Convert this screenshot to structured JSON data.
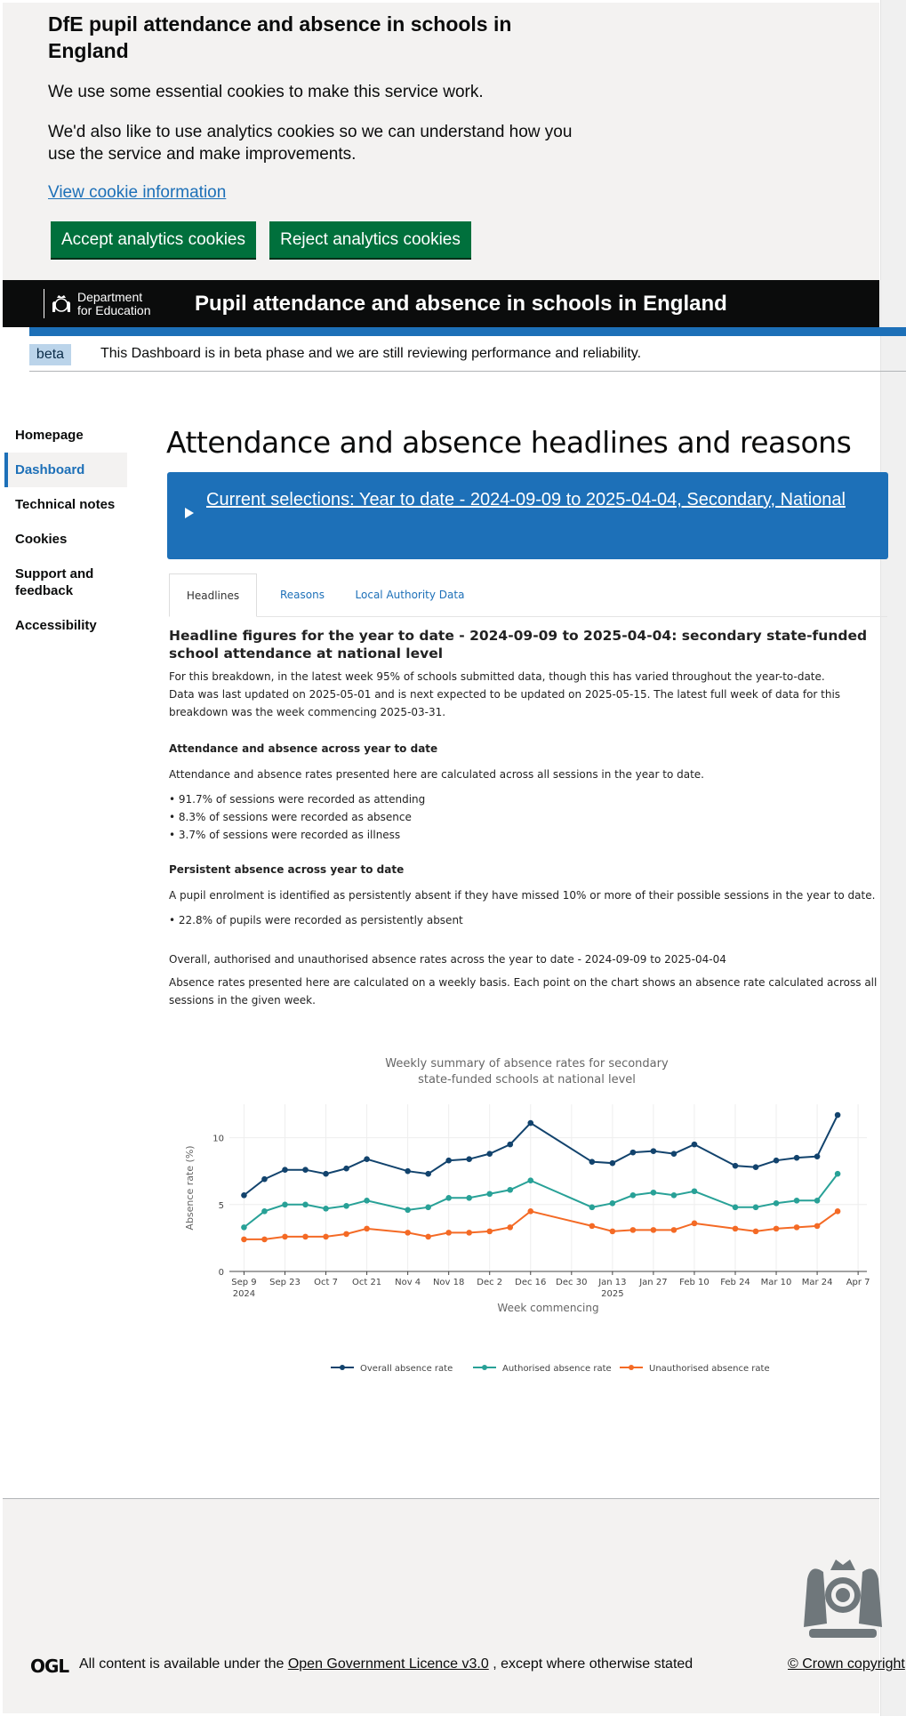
{
  "cookie_banner": {
    "title": "DfE pupil attendance and absence in schools in England",
    "essential_text": "We use some essential cookies to make this service work.",
    "analytics_text": "We'd also like to use analytics cookies so we can understand how you use the service and make improvements.",
    "view_link": "View cookie information",
    "accept_label": "Accept analytics cookies",
    "reject_label": "Reject analytics cookies"
  },
  "header": {
    "logo_line1": "Department",
    "logo_line2": "for Education",
    "title": "Pupil attendance and absence in schools in England"
  },
  "beta": {
    "tag": "beta",
    "text": "This Dashboard is in beta phase and we are still reviewing performance and reliability."
  },
  "sidebar": {
    "items": [
      {
        "label": "Homepage"
      },
      {
        "label": "Dashboard"
      },
      {
        "label": "Technical notes"
      },
      {
        "label": "Cookies"
      },
      {
        "label": "Support and feedback"
      },
      {
        "label": "Accessibility"
      }
    ],
    "active_index": 1
  },
  "main": {
    "title": "Attendance and absence headlines and reasons",
    "selections": "Current selections: Year to date - 2024-09-09 to 2025-04-04, Secondary, National",
    "tabs": [
      "Headlines",
      "Reasons",
      "Local Authority Data"
    ],
    "headline_title": "Headline figures for the year to date - 2024-09-09 to 2025-04-04: secondary state-funded school attendance at national level",
    "breakdown_text1": "For this breakdown, in the latest week 95% of schools submitted data, though this has varied throughout the year-to-date.",
    "breakdown_text2": "Data was last updated on 2025-05-01 and is next expected to be updated on 2025-05-15. The latest full week of data for this breakdown was the week commencing 2025-03-31.",
    "attendance_heading": "Attendance and absence across year to date",
    "attendance_text": "Attendance and absence rates presented here are calculated across all sessions in the year to date.",
    "attendance_bullets": [
      "• 91.7% of sessions were recorded as attending",
      "• 8.3% of sessions were recorded as absence",
      "• 3.7% of sessions were recorded as illness"
    ],
    "persistent_heading": "Persistent absence across year to date",
    "persistent_text": "A pupil enrolment is identified as persistently absent if they have missed 10% or more of their possible sessions in the year to date.",
    "persistent_bullet": "• 22.8% of pupils were recorded as persistently absent",
    "chart_heading": "Overall, authorised and unauthorised absence rates across the year to date - 2024-09-09 to 2025-04-04",
    "chart_text": "Absence rates presented here are calculated on a weekly basis. Each point on the chart shows an absence rate calculated across all sessions in the given week."
  },
  "chart_data": {
    "type": "line",
    "title_line1": "Weekly summary of absence rates for secondary",
    "title_line2": "state-funded schools at national level",
    "xlabel": "Week commencing",
    "ylabel": "Absence rate (%)",
    "ylim": [
      0,
      12.5
    ],
    "yticks": [
      0,
      5,
      10
    ],
    "xlim": [
      "2024-09-04",
      "2025-04-10"
    ],
    "xticks": [
      {
        "date": "2024-09-09",
        "label": "Sep 9",
        "sub": "2024"
      },
      {
        "date": "2024-09-23",
        "label": "Sep 23",
        "sub": ""
      },
      {
        "date": "2024-10-07",
        "label": "Oct 7",
        "sub": ""
      },
      {
        "date": "2024-10-21",
        "label": "Oct 21",
        "sub": ""
      },
      {
        "date": "2024-11-04",
        "label": "Nov 4",
        "sub": ""
      },
      {
        "date": "2024-11-18",
        "label": "Nov 18",
        "sub": ""
      },
      {
        "date": "2024-12-02",
        "label": "Dec 2",
        "sub": ""
      },
      {
        "date": "2024-12-16",
        "label": "Dec 16",
        "sub": ""
      },
      {
        "date": "2024-12-30",
        "label": "Dec 30",
        "sub": ""
      },
      {
        "date": "2025-01-13",
        "label": "Jan 13",
        "sub": "2025"
      },
      {
        "date": "2025-01-27",
        "label": "Jan 27",
        "sub": ""
      },
      {
        "date": "2025-02-10",
        "label": "Feb 10",
        "sub": ""
      },
      {
        "date": "2025-02-24",
        "label": "Feb 24",
        "sub": ""
      },
      {
        "date": "2025-03-10",
        "label": "Mar 10",
        "sub": ""
      },
      {
        "date": "2025-03-24",
        "label": "Mar 24",
        "sub": ""
      },
      {
        "date": "2025-04-07",
        "label": "Apr 7",
        "sub": ""
      }
    ],
    "x": [
      "2024-09-09",
      "2024-09-16",
      "2024-09-23",
      "2024-09-30",
      "2024-10-07",
      "2024-10-14",
      "2024-10-21",
      "2024-11-04",
      "2024-11-11",
      "2024-11-18",
      "2024-11-25",
      "2024-12-02",
      "2024-12-09",
      "2024-12-16",
      "2025-01-06",
      "2025-01-13",
      "2025-01-20",
      "2025-01-27",
      "2025-02-03",
      "2025-02-10",
      "2025-02-24",
      "2025-03-03",
      "2025-03-10",
      "2025-03-17",
      "2025-03-24",
      "2025-03-31"
    ],
    "series": [
      {
        "name": "Overall absence rate",
        "color": "#12436d",
        "values": [
          5.7,
          6.9,
          7.6,
          7.6,
          7.3,
          7.7,
          8.4,
          7.5,
          7.3,
          8.3,
          8.4,
          8.8,
          9.5,
          11.1,
          8.2,
          8.1,
          8.9,
          9.0,
          8.8,
          9.5,
          7.9,
          7.8,
          8.3,
          8.5,
          8.6,
          11.7
        ]
      },
      {
        "name": "Authorised absence rate",
        "color": "#28a197",
        "values": [
          3.3,
          4.5,
          5.0,
          5.0,
          4.7,
          4.9,
          5.3,
          4.6,
          4.8,
          5.5,
          5.5,
          5.8,
          6.1,
          6.8,
          4.8,
          5.1,
          5.7,
          5.9,
          5.7,
          6.0,
          4.8,
          4.8,
          5.1,
          5.3,
          5.3,
          7.3
        ]
      },
      {
        "name": "Unauthorised absence rate",
        "color": "#f46a25",
        "values": [
          2.4,
          2.4,
          2.6,
          2.6,
          2.6,
          2.8,
          3.2,
          2.9,
          2.6,
          2.9,
          2.9,
          3.0,
          3.3,
          4.5,
          3.4,
          3.0,
          3.1,
          3.1,
          3.1,
          3.6,
          3.2,
          3.0,
          3.2,
          3.3,
          3.4,
          4.5
        ]
      }
    ],
    "legend": "bottom"
  },
  "footer": {
    "ogl_logo": "OGL",
    "licence_prefix": "All content is available under the",
    "licence_link": "Open Government Licence v3.0",
    "licence_suffix": ", except where otherwise stated",
    "crown_link": "© Crown copyright"
  }
}
